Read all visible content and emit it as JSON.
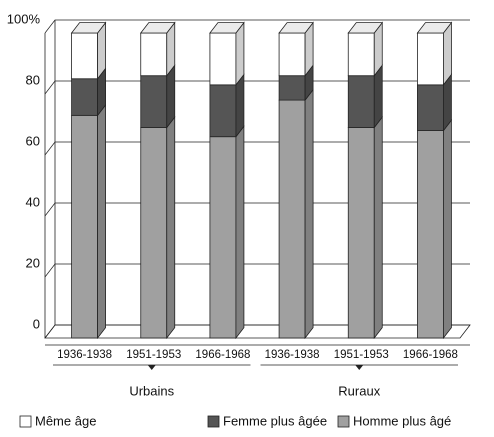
{
  "chart_data": {
    "type": "stacked_bar_3d",
    "categories": [
      "1936-1938",
      "1951-1953",
      "1966-1968",
      "1936-1938",
      "1951-1953",
      "1966-1968"
    ],
    "groups": [
      "Urbains",
      "Ruraux"
    ],
    "series": [
      {
        "name": "Même âge",
        "color": "#ffffff",
        "values": [
          15,
          14,
          17,
          14,
          14,
          17
        ]
      },
      {
        "name": "Femme plus âgée",
        "color": "#555555",
        "values": [
          12,
          17,
          17,
          8,
          17,
          15
        ]
      },
      {
        "name": "Homme plus âgé",
        "color": "#a0a0a0",
        "values": [
          73,
          69,
          66,
          78,
          69,
          68
        ]
      }
    ],
    "ylim": [
      0,
      100
    ],
    "yticks": [
      0,
      20,
      40,
      60,
      {
        "value": 100,
        "label": "100%"
      },
      80
    ],
    "grid": true
  }
}
